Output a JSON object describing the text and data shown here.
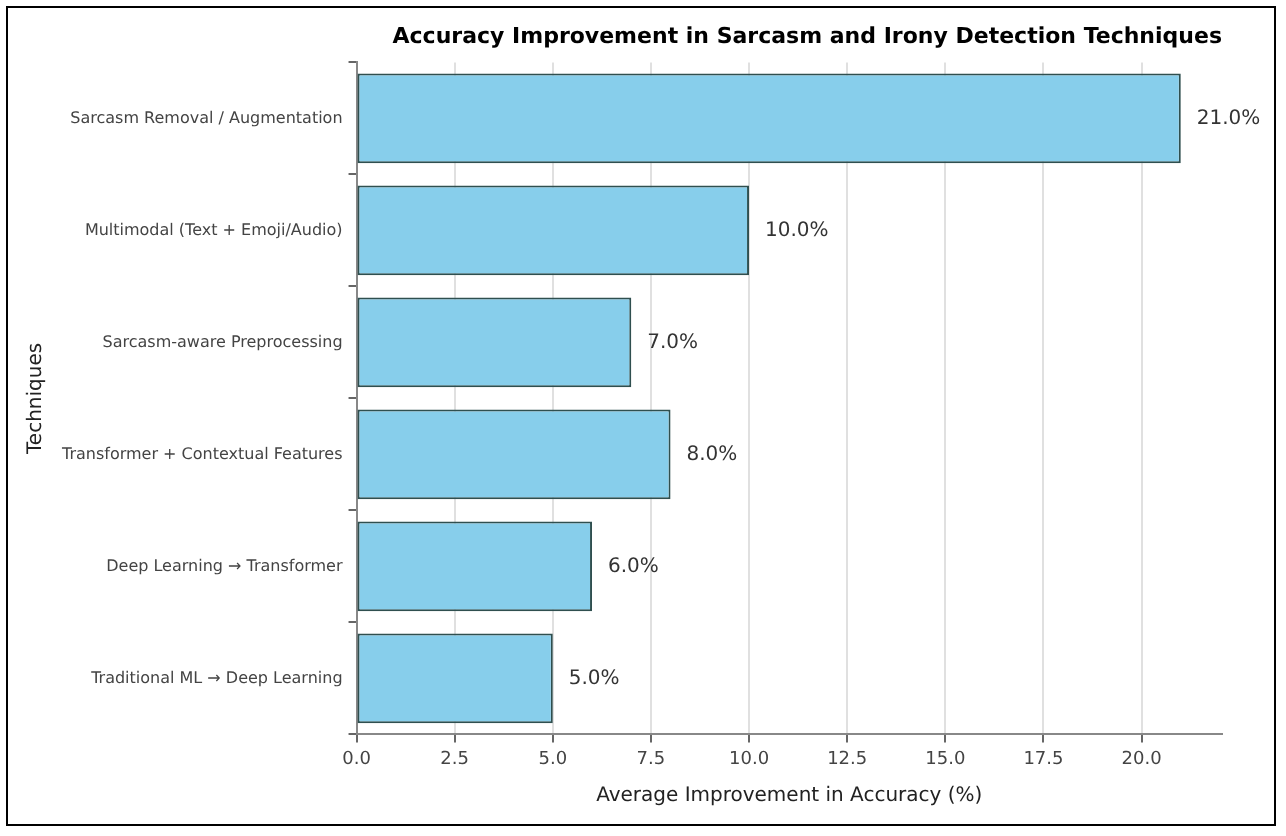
{
  "chart_data": {
    "type": "bar",
    "orientation": "horizontal",
    "title": "Accuracy Improvement in Sarcasm and Irony Detection Techniques",
    "xlabel": "Average Improvement in Accuracy (%)",
    "ylabel": "Techniques",
    "categories": [
      "Sarcasm Removal / Augmentation",
      "Multimodal (Text + Emoji/Audio)",
      "Sarcasm-aware Preprocessing",
      "Transformer + Contextual Features",
      "Deep Learning → Transformer",
      "Traditional ML → Deep Learning"
    ],
    "values": [
      21,
      10,
      7,
      8,
      6,
      5
    ],
    "color": "#87ceeb",
    "value_labels": [
      "21.0%",
      "10.0%",
      "7.0%",
      "8.0%",
      "6.0%",
      "5.0%"
    ],
    "xlim": [
      0,
      22.05
    ],
    "xticks": [
      {
        "value": 0,
        "label": "0.0"
      },
      {
        "value": 2.5,
        "label": "2.5"
      },
      {
        "value": 5,
        "label": "5.0"
      },
      {
        "value": 7.5,
        "label": "7.5"
      },
      {
        "value": 10,
        "label": "10.0"
      },
      {
        "value": 12.5,
        "label": "12.5"
      },
      {
        "value": 15,
        "label": "15.0"
      },
      {
        "value": 17.5,
        "label": "17.5"
      },
      {
        "value": 20,
        "label": "20.0"
      }
    ],
    "grid": "x",
    "legend": false
  }
}
